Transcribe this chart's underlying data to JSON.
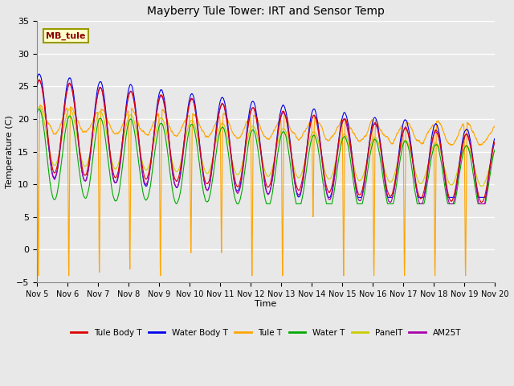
{
  "title": "Mayberry Tule Tower: IRT and Sensor Temp",
  "xlabel": "Time",
  "ylabel": "Temperature (C)",
  "ylim": [
    -5,
    35
  ],
  "xlim": [
    0,
    15
  ],
  "x_tick_labels": [
    "Nov 5",
    "Nov 6",
    "Nov 7",
    "Nov 8",
    "Nov 9",
    "Nov 10",
    "Nov 11",
    "Nov 12",
    "Nov 13",
    "Nov 14",
    "Nov 15",
    "Nov 16",
    "Nov 17",
    "Nov 18",
    "Nov 19",
    "Nov 20"
  ],
  "annotation_text": "MB_tule",
  "annotation_color": "#8B0000",
  "annotation_bg": "#FFFFCC",
  "annotation_border": "#999900",
  "series_colors": {
    "Tule Body T": "#DD0000",
    "Water Body T": "#0000EE",
    "Tule T": "#FFA500",
    "Water T": "#00AA00",
    "PanelT": "#CCCC00",
    "AM25T": "#AA00AA"
  },
  "legend_entries": [
    "Tule Body T",
    "Water Body T",
    "Tule T",
    "Water T",
    "PanelT",
    "AM25T"
  ],
  "bg_color": "#E8E8E8",
  "plot_bg_color": "#E8E8E8",
  "grid_color": "#FFFFFF",
  "num_points": 2160
}
